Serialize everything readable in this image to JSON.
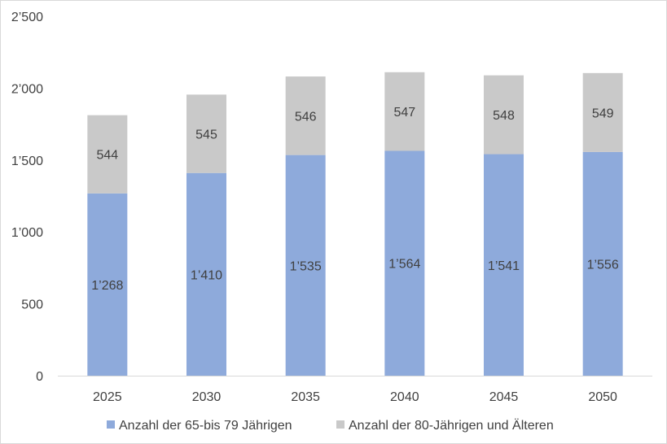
{
  "chart_data": {
    "type": "bar",
    "stacked": true,
    "categories": [
      "2025",
      "2030",
      "2035",
      "2040",
      "2045",
      "2050"
    ],
    "series": [
      {
        "name": "Anzahl der 65-bis 79 Jährigen",
        "values": [
          1268,
          1410,
          1535,
          1564,
          1541,
          1556
        ],
        "labels": [
          "1’268",
          "1’410",
          "1’535",
          "1’564",
          "1’541",
          "1’556"
        ],
        "color": "#8eaadb"
      },
      {
        "name": "Anzahl der 80-Jährigen und Älteren",
        "values": [
          544,
          545,
          546,
          547,
          548,
          549
        ],
        "labels": [
          "544",
          "545",
          "546",
          "547",
          "548",
          "549"
        ],
        "color": "#c9c9c9"
      }
    ],
    "ylim": [
      0,
      2500
    ],
    "yticks": [
      0,
      500,
      1000,
      1500,
      2000,
      2500
    ],
    "ytick_labels": [
      "0",
      "500",
      "1’000",
      "1’500",
      "2’000",
      "2’500"
    ],
    "grid": false,
    "legend_position": "bottom"
  }
}
